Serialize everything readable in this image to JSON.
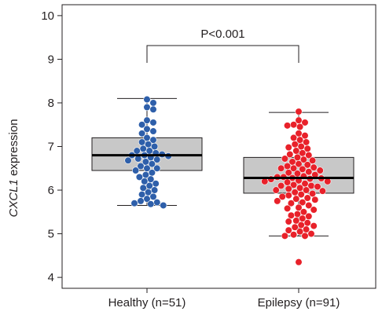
{
  "chart_data": {
    "type": "scatter",
    "subtype": "box-plot with beeswarm points",
    "title": "",
    "xlabel": "",
    "ylabel_italic": "CXCL1",
    "ylabel_rest": " expression",
    "ylim": [
      3.75,
      10.25
    ],
    "yticks": [
      4,
      5,
      6,
      7,
      8,
      9,
      10
    ],
    "categories": [
      "Healthy (n=51)",
      "Epilepsy (n=91)"
    ],
    "box_fill": "#c8c8c8",
    "annotation": {
      "text": "P<0.001"
    },
    "groups": [
      {
        "label": "Healthy (n=51)",
        "color": "#2e5faa",
        "n": 51,
        "box": {
          "lower_whisker": 5.65,
          "q1": 6.45,
          "median": 6.8,
          "q3": 7.2,
          "upper_whisker": 8.1
        },
        "points": [
          8.08,
          8.0,
          7.9,
          7.85,
          7.6,
          7.55,
          7.5,
          7.4,
          7.35,
          7.3,
          7.2,
          7.15,
          7.1,
          7.05,
          7.0,
          6.95,
          6.9,
          6.9,
          6.85,
          6.82,
          6.8,
          6.8,
          6.78,
          6.75,
          6.72,
          6.7,
          6.68,
          6.65,
          6.6,
          6.55,
          6.5,
          6.5,
          6.45,
          6.4,
          6.35,
          6.3,
          6.25,
          6.2,
          6.15,
          6.1,
          6.05,
          6.0,
          5.95,
          5.9,
          5.85,
          5.8,
          5.75,
          5.72,
          5.7,
          5.68,
          5.65
        ]
      },
      {
        "label": "Epilepsy (n=91)",
        "color": "#e8212a",
        "n": 91,
        "box": {
          "lower_whisker": 4.95,
          "q1": 5.93,
          "median": 6.28,
          "q3": 6.75,
          "upper_whisker": 7.78
        },
        "points": [
          7.8,
          7.6,
          7.55,
          7.5,
          7.48,
          7.45,
          7.3,
          7.25,
          7.2,
          7.15,
          7.1,
          7.05,
          7.0,
          6.98,
          6.95,
          6.9,
          6.85,
          6.82,
          6.8,
          6.75,
          6.72,
          6.7,
          6.68,
          6.65,
          6.6,
          6.58,
          6.55,
          6.52,
          6.5,
          6.5,
          6.48,
          6.45,
          6.42,
          6.4,
          6.38,
          6.35,
          6.32,
          6.3,
          6.3,
          6.28,
          6.27,
          6.26,
          6.25,
          6.22,
          6.2,
          6.2,
          6.18,
          6.15,
          6.12,
          6.1,
          6.1,
          6.08,
          6.05,
          6.03,
          6.0,
          6.0,
          5.98,
          5.95,
          5.92,
          5.9,
          5.88,
          5.85,
          5.82,
          5.8,
          5.78,
          5.75,
          5.72,
          5.7,
          5.65,
          5.6,
          5.58,
          5.55,
          5.5,
          5.45,
          5.42,
          5.4,
          5.35,
          5.3,
          5.28,
          5.25,
          5.2,
          5.18,
          5.15,
          5.1,
          5.08,
          5.05,
          5.0,
          4.98,
          4.95,
          4.95,
          4.35
        ]
      }
    ]
  }
}
